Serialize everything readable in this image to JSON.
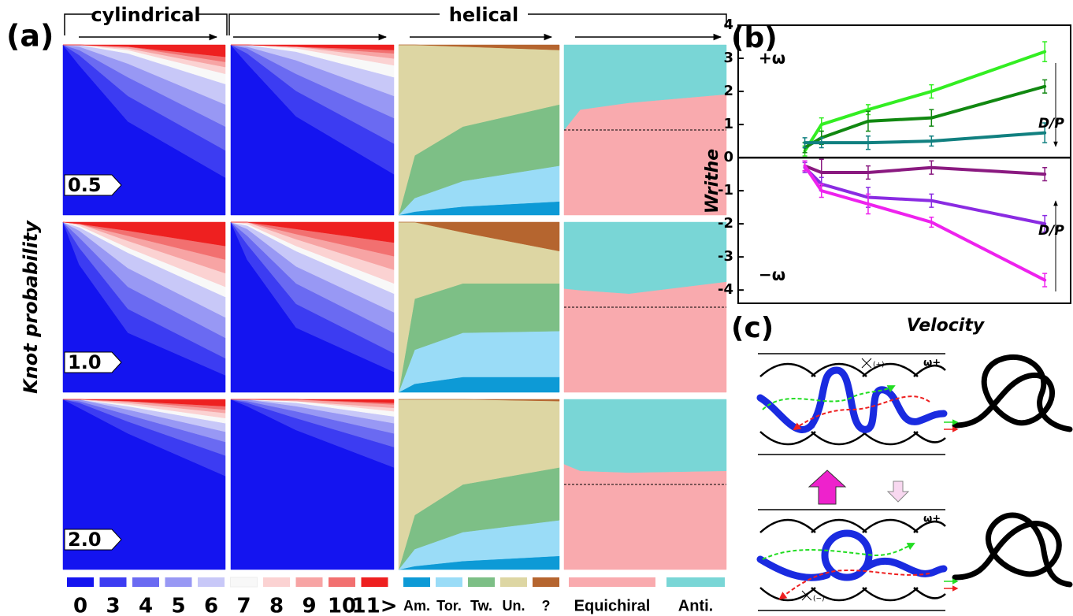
{
  "panel_a": {
    "label": "(a)",
    "y_label": "Knot probability",
    "group_labels": [
      "cylindrical",
      "helical"
    ],
    "row_labels": [
      "0.5",
      "1.0",
      "2.0"
    ],
    "x": [
      0,
      0.1,
      0.4,
      1
    ],
    "ylim": [
      0,
      100
    ],
    "knot_legend": {
      "names": [
        "0",
        "3",
        "4",
        "5",
        "6",
        "7",
        "8",
        "9",
        "10",
        "11>"
      ],
      "colors": [
        "#1414f0",
        "#3c3cf2",
        "#6a6af2",
        "#9898f4",
        "#c8c8f8",
        "#f8f8f8",
        "#fbd2d2",
        "#f7a4a4",
        "#f27070",
        "#ee2020"
      ]
    },
    "helix_legend": {
      "names": [
        "Am.",
        "Tor.",
        "Tw.",
        "Un.",
        "?"
      ],
      "colors": [
        "#0d9ad6",
        "#9adcf7",
        "#7dbf86",
        "#ddd6a3",
        "#b5652f"
      ]
    },
    "chirality_legend": {
      "names": [
        "Equichiral",
        "Anti."
      ],
      "colors": [
        "#f9aaae",
        "#79d6d6"
      ]
    },
    "rows": [
      {
        "knots_cylindrical": [
          [
            100,
            88,
            55,
            22
          ],
          [
            0,
            6,
            15,
            16
          ],
          [
            0,
            3,
            11,
            14
          ],
          [
            0,
            2,
            8,
            13
          ],
          [
            0,
            1,
            6,
            12
          ],
          [
            0,
            0,
            2,
            6
          ],
          [
            0,
            0,
            1,
            4
          ],
          [
            0,
            0,
            1,
            3
          ],
          [
            0,
            0,
            0,
            3
          ],
          [
            0,
            0,
            1,
            7
          ]
        ],
        "knots_helical": [
          [
            100,
            89,
            58,
            24
          ],
          [
            0,
            6,
            15,
            18
          ],
          [
            0,
            3,
            10,
            15
          ],
          [
            0,
            1,
            8,
            13
          ],
          [
            0,
            1,
            5,
            11
          ],
          [
            0,
            0,
            2,
            7
          ],
          [
            0,
            0,
            1,
            4
          ],
          [
            0,
            0,
            0,
            3
          ],
          [
            0,
            0,
            0,
            2
          ],
          [
            0,
            0,
            1,
            3
          ]
        ],
        "helix_types": [
          [
            0,
            2,
            5,
            8
          ],
          [
            0,
            8,
            15,
            21
          ],
          [
            0,
            25,
            32,
            36
          ],
          [
            100,
            65,
            47,
            32
          ],
          [
            0,
            0,
            1,
            3
          ]
        ],
        "chirality": [
          [
            50,
            62,
            66,
            71
          ],
          [
            50,
            38,
            34,
            29
          ]
        ],
        "reference": 50
      },
      {
        "knots_cylindrical": [
          [
            100,
            75,
            35,
            10
          ],
          [
            0,
            10,
            14,
            10
          ],
          [
            0,
            6,
            13,
            12
          ],
          [
            0,
            4,
            11,
            12
          ],
          [
            0,
            2,
            9,
            12
          ],
          [
            0,
            1,
            3,
            6
          ],
          [
            0,
            1,
            4,
            8
          ],
          [
            0,
            0,
            3,
            8
          ],
          [
            0,
            0,
            3,
            8
          ],
          [
            0,
            1,
            5,
            14
          ]
        ],
        "knots_helical": [
          [
            100,
            78,
            38,
            12
          ],
          [
            0,
            9,
            14,
            11
          ],
          [
            0,
            5,
            12,
            12
          ],
          [
            0,
            4,
            10,
            12
          ],
          [
            0,
            2,
            9,
            11
          ],
          [
            0,
            1,
            3,
            6
          ],
          [
            0,
            1,
            4,
            8
          ],
          [
            0,
            0,
            3,
            8
          ],
          [
            0,
            0,
            3,
            8
          ],
          [
            0,
            0,
            4,
            12
          ]
        ],
        "helix_types": [
          [
            0,
            5,
            9,
            9
          ],
          [
            0,
            20,
            26,
            27
          ],
          [
            0,
            30,
            29,
            28
          ],
          [
            100,
            45,
            30,
            19
          ],
          [
            0,
            0,
            6,
            17
          ]
        ],
        "chirality": [
          [
            61,
            60,
            58,
            65
          ],
          [
            39,
            40,
            42,
            35
          ]
        ],
        "reference": 50
      },
      {
        "knots_cylindrical": [
          [
            100,
            95,
            80,
            55
          ],
          [
            0,
            3,
            7,
            12
          ],
          [
            0,
            1,
            4,
            8
          ],
          [
            0,
            1,
            3,
            6
          ],
          [
            0,
            0,
            2,
            5
          ],
          [
            0,
            0,
            1,
            3
          ],
          [
            0,
            0,
            1,
            3
          ],
          [
            0,
            0,
            1,
            2
          ],
          [
            0,
            0,
            0,
            2
          ],
          [
            0,
            0,
            1,
            4
          ]
        ],
        "knots_helical": [
          [
            100,
            96,
            82,
            60
          ],
          [
            0,
            2,
            7,
            12
          ],
          [
            0,
            1,
            4,
            8
          ],
          [
            0,
            1,
            3,
            6
          ],
          [
            0,
            0,
            2,
            4
          ],
          [
            0,
            0,
            1,
            3
          ],
          [
            0,
            0,
            0,
            2
          ],
          [
            0,
            0,
            1,
            2
          ],
          [
            0,
            0,
            0,
            1
          ],
          [
            0,
            0,
            0,
            2
          ]
        ],
        "helix_types": [
          [
            0,
            2,
            5,
            8
          ],
          [
            0,
            10,
            17,
            21
          ],
          [
            0,
            20,
            28,
            31
          ],
          [
            100,
            68,
            50,
            39
          ],
          [
            0,
            0,
            0,
            1
          ]
        ],
        "chirality": [
          [
            62,
            58,
            57,
            58
          ],
          [
            38,
            42,
            43,
            42
          ]
        ],
        "reference": 50
      }
    ]
  },
  "panel_b": {
    "type": "line",
    "label": "(b)",
    "y_label": "Writhe",
    "x_label": "Velocity",
    "x": [
      2,
      2.5,
      3.9,
      5.8,
      9.2
    ],
    "xlim": [
      0,
      10
    ],
    "ylim": [
      -4.4,
      4
    ],
    "yticks": [
      -4,
      -3,
      -2,
      -1,
      0,
      1,
      2,
      3,
      4
    ],
    "annotations": [
      "+ω",
      "−ω",
      "D/P",
      "D/P"
    ],
    "series": [
      {
        "color": "#33ee22",
        "values": [
          0.2,
          1.0,
          1.45,
          2.0,
          3.2
        ],
        "errors": [
          0.15,
          0.2,
          0.15,
          0.2,
          0.3
        ]
      },
      {
        "color": "#118811",
        "values": [
          0.3,
          0.6,
          1.1,
          1.2,
          2.15
        ],
        "errors": [
          0.15,
          0.2,
          0.3,
          0.25,
          0.2
        ]
      },
      {
        "color": "#118080",
        "values": [
          0.45,
          0.45,
          0.45,
          0.5,
          0.75
        ],
        "errors": [
          0.15,
          0.15,
          0.2,
          0.15,
          0.3
        ]
      },
      {
        "color": "#8a1a80",
        "values": [
          -0.25,
          -0.45,
          -0.45,
          -0.3,
          -0.5
        ],
        "errors": [
          0.15,
          0.4,
          0.2,
          0.2,
          0.2
        ]
      },
      {
        "color": "#8a2be2",
        "values": [
          -0.3,
          -0.8,
          -1.2,
          -1.3,
          -2.0
        ],
        "errors": [
          0.15,
          0.2,
          0.3,
          0.2,
          0.25
        ]
      },
      {
        "color": "#ee22ee",
        "values": [
          -0.25,
          -1.0,
          -1.4,
          -1.95,
          -3.7
        ],
        "errors": [
          0.15,
          0.2,
          0.3,
          0.15,
          0.2
        ]
      }
    ]
  },
  "panel_c": {
    "label": "(c)",
    "omega_labels": [
      "ω+",
      "ω+"
    ],
    "crossing_labels": [
      "(+)",
      "(−)"
    ]
  }
}
